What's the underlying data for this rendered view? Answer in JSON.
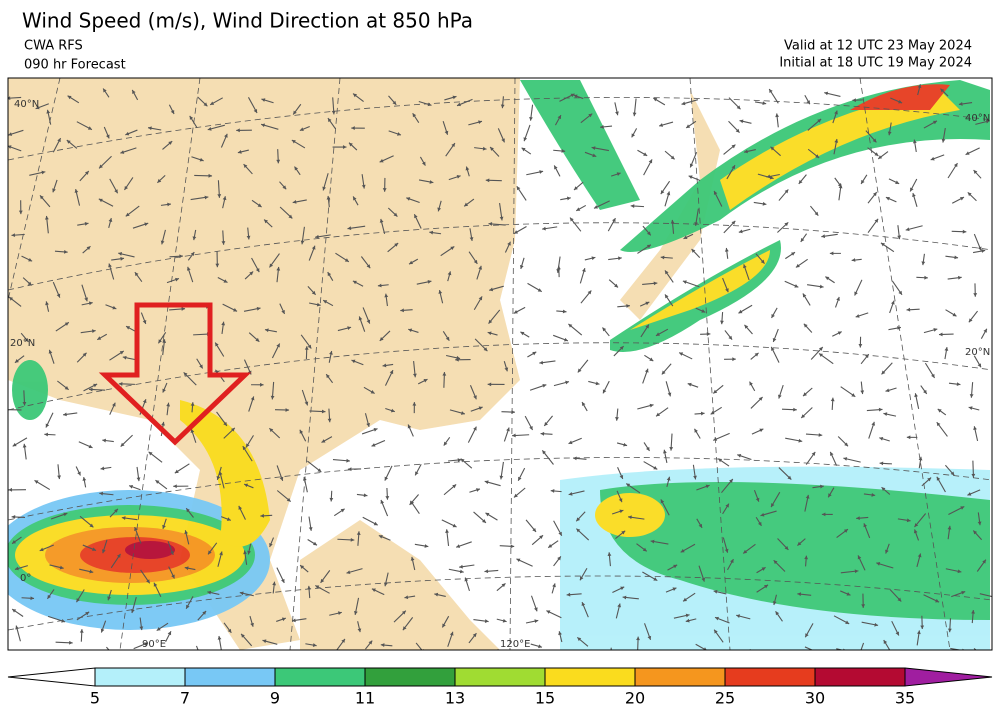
{
  "header": {
    "title": "Wind Speed (m/s), Wind Direction at 850 hPa",
    "source": "CWA RFS",
    "forecast": "090 hr Forecast",
    "valid": "Valid at 12 UTC 23 May 2024",
    "initial": "Initial at 18 UTC 19 May 2024"
  },
  "map_labels": {
    "lat_north_40": "40°N",
    "lat_20": "20°N",
    "lat_20_right": "20°N",
    "lat_40_right": "40°N",
    "lon_90": "90°E",
    "lon_120": "120°E",
    "lat_0": "0°"
  },
  "colorbar": {
    "ticks": [
      5,
      7,
      9,
      11,
      13,
      15,
      20,
      25,
      30,
      35
    ],
    "colors": [
      "#ffffff",
      "#b4f0fa",
      "#78c8f5",
      "#3cc878",
      "#32a03c",
      "#a0dc32",
      "#fadc1e",
      "#f5961e",
      "#e63c1e",
      "#b40a32",
      "#a01ea0"
    ]
  }
}
